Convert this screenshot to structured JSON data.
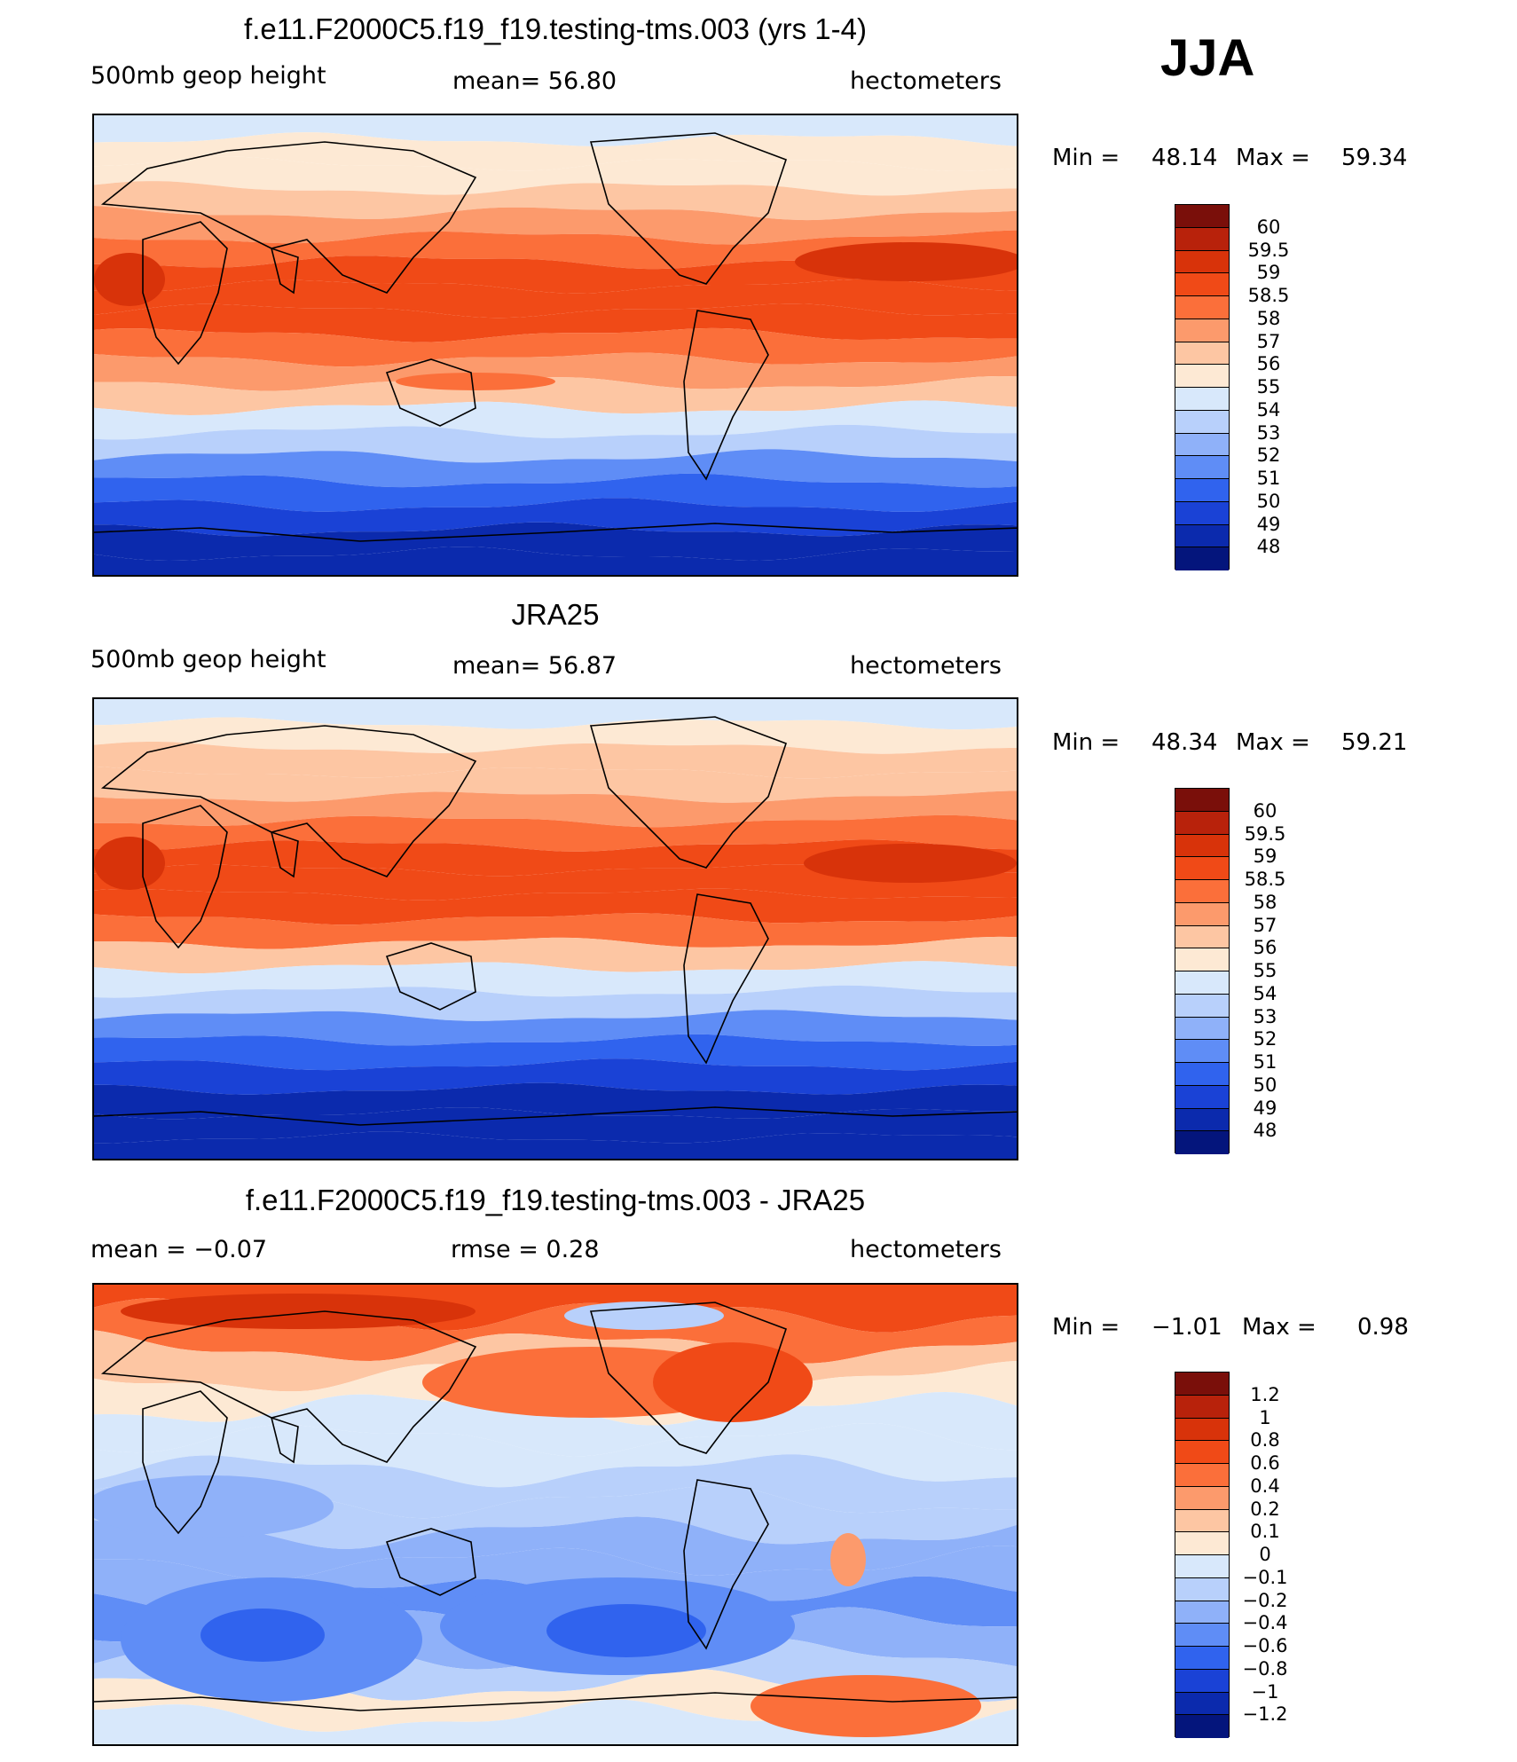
{
  "season": "JJA",
  "panels": [
    {
      "title": "f.e11.F2000C5.f19_f19.testing-tms.003 (yrs 1-4)",
      "left_label": "500mb  geop  height",
      "center_label": "mean=   56.80",
      "right_label": "hectometers",
      "min_label": "Min  =",
      "min_value": "48.14",
      "max_label": "Max  =",
      "max_value": "59.34",
      "colorbar_labels": [
        "60",
        "59.5",
        "59",
        "58.5",
        "58",
        "57",
        "56",
        "55",
        "54",
        "53",
        "52",
        "51",
        "50",
        "49",
        "48"
      ]
    },
    {
      "title": "JRA25",
      "left_label": "500mb  geop  height",
      "center_label": "mean=   56.87",
      "right_label": "hectometers",
      "min_label": "Min  =",
      "min_value": "48.34",
      "max_label": "Max  =",
      "max_value": "59.21",
      "colorbar_labels": [
        "60",
        "59.5",
        "59",
        "58.5",
        "58",
        "57",
        "56",
        "55",
        "54",
        "53",
        "52",
        "51",
        "50",
        "49",
        "48"
      ]
    },
    {
      "title": "f.e11.F2000C5.f19_f19.testing-tms.003 - JRA25",
      "left_label": "mean  =    −0.07",
      "center_label": "rmse  =     0.28",
      "right_label": "hectometers",
      "min_label": "Min  =",
      "min_value": "−1.01",
      "max_label": "Max  =",
      "max_value": "0.98",
      "colorbar_labels": [
        "1.2",
        "1",
        "0.8",
        "0.6",
        "0.4",
        "0.2",
        "0.1",
        "0",
        "−0.1",
        "−0.2",
        "−0.4",
        "−0.6",
        "−0.8",
        "−1",
        "−1.2"
      ]
    }
  ],
  "colors": {
    "palette": [
      "#7a0f0a",
      "#b8220b",
      "#d8330a",
      "#f04a17",
      "#fb6f3a",
      "#fc9a6c",
      "#fdc6a3",
      "#fde9d4",
      "#d8e8fb",
      "#b8d0fb",
      "#8fb1f9",
      "#5f8df6",
      "#3063ee",
      "#1a42d6",
      "#0b2aad",
      "#04157c"
    ],
    "zero": "#fbeadb"
  },
  "contour_fields": {
    "model_bands_north_to_south": [
      8,
      7,
      7,
      6,
      5,
      4,
      3,
      3,
      3,
      4,
      5,
      6,
      8,
      9,
      11,
      12,
      13,
      14,
      14
    ],
    "obs_bands_north_to_south": [
      8,
      7,
      6,
      6,
      5,
      4,
      3,
      3,
      3,
      4,
      6,
      8,
      9,
      11,
      12,
      13,
      14,
      14,
      14
    ],
    "diff_bands_north_to_south": [
      3,
      4,
      6,
      7,
      8,
      8,
      9,
      9,
      10,
      10,
      11,
      10,
      9,
      7,
      8
    ]
  }
}
